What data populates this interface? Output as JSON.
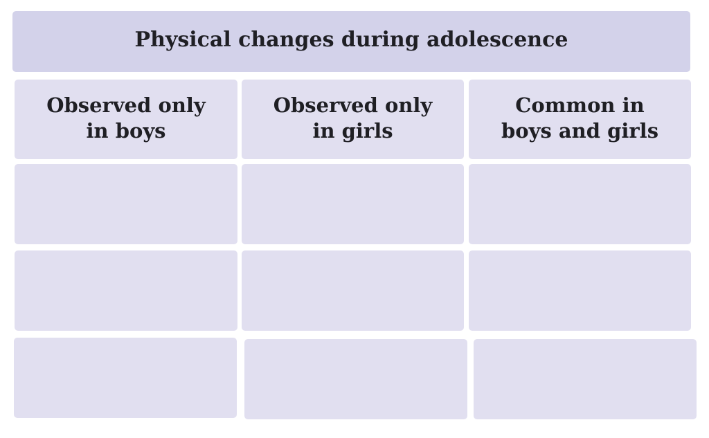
{
  "table": {
    "title": "Physical changes during adolescence",
    "columns": [
      {
        "label": "Observed only in boys"
      },
      {
        "label": "Observed only in girls"
      },
      {
        "label": "Common in boys and girls"
      }
    ],
    "rows": [
      [
        "",
        "",
        ""
      ],
      [
        "",
        "",
        ""
      ],
      [
        "",
        "",
        ""
      ]
    ],
    "colors": {
      "title_background": "#d3d2ea",
      "cell_background": "#e1dff0",
      "text": "#1f1f24"
    }
  }
}
